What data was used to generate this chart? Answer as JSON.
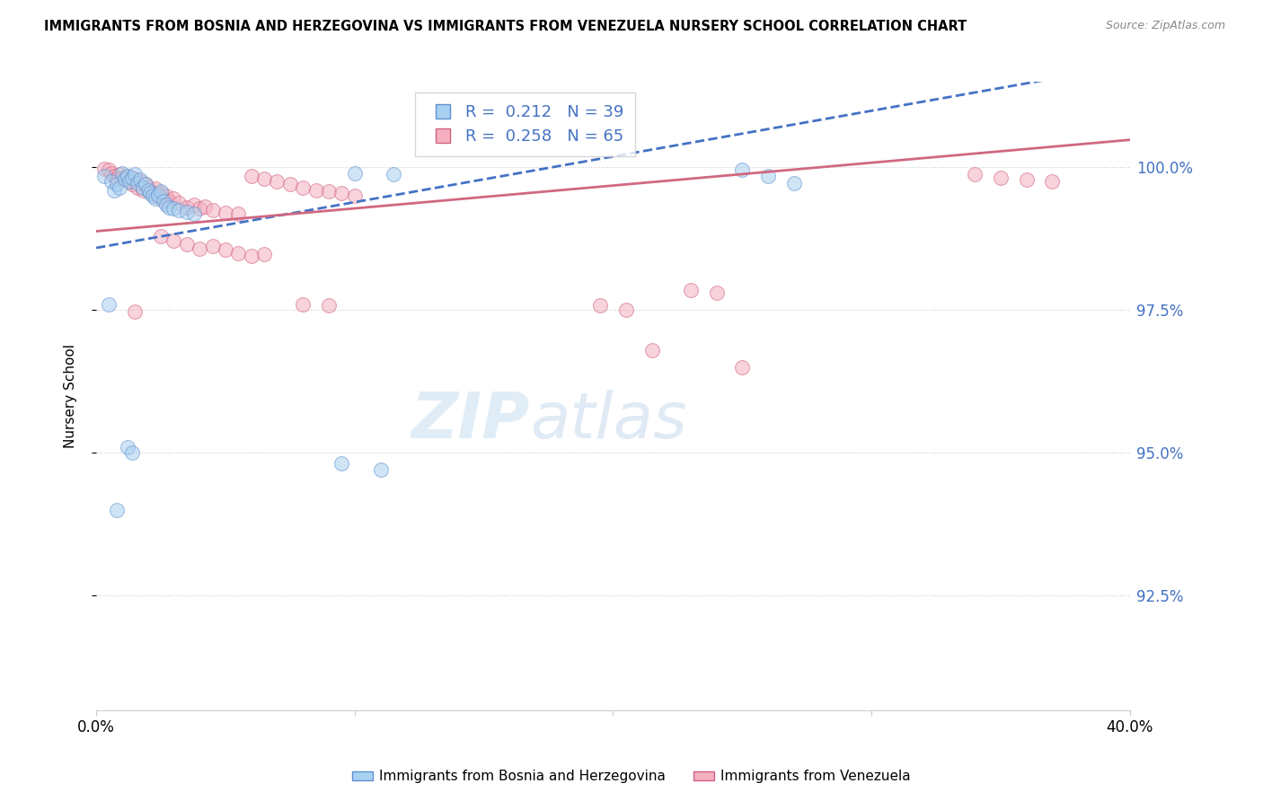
{
  "title": "IMMIGRANTS FROM BOSNIA AND HERZEGOVINA VS IMMIGRANTS FROM VENEZUELA NURSERY SCHOOL CORRELATION CHART",
  "source": "Source: ZipAtlas.com",
  "ylabel": "Nursery School",
  "ytick_labels": [
    "100.0%",
    "97.5%",
    "95.0%",
    "92.5%"
  ],
  "ytick_values": [
    1.0,
    0.975,
    0.95,
    0.925
  ],
  "xlim": [
    0.0,
    0.4
  ],
  "ylim": [
    0.905,
    1.015
  ],
  "legend_r_blue": "R = 0.212",
  "legend_n_blue": "N = 39",
  "legend_r_pink": "R = 0.258",
  "legend_n_pink": "N = 65",
  "blue_color": "#a8d0f0",
  "pink_color": "#f4b0c0",
  "blue_edge_color": "#6090d0",
  "pink_edge_color": "#d06080",
  "blue_line_color": "#4472c4",
  "pink_line_color": "#d06880",
  "watermark_zip": "ZIP",
  "watermark_atlas": "atlas",
  "blue_dots": [
    [
      0.003,
      0.9985
    ],
    [
      0.006,
      0.9975
    ],
    [
      0.007,
      0.996
    ],
    [
      0.008,
      0.997
    ],
    [
      0.009,
      0.9965
    ],
    [
      0.01,
      0.999
    ],
    [
      0.011,
      0.998
    ],
    [
      0.012,
      0.9985
    ],
    [
      0.013,
      0.9975
    ],
    [
      0.014,
      0.9982
    ],
    [
      0.015,
      0.9988
    ],
    [
      0.016,
      0.9972
    ],
    [
      0.017,
      0.9978
    ],
    [
      0.018,
      0.9965
    ],
    [
      0.019,
      0.997
    ],
    [
      0.02,
      0.996
    ],
    [
      0.021,
      0.9955
    ],
    [
      0.022,
      0.995
    ],
    [
      0.023,
      0.9945
    ],
    [
      0.024,
      0.9952
    ],
    [
      0.025,
      0.9958
    ],
    [
      0.026,
      0.994
    ],
    [
      0.027,
      0.9935
    ],
    [
      0.028,
      0.993
    ],
    [
      0.03,
      0.9928
    ],
    [
      0.032,
      0.9925
    ],
    [
      0.035,
      0.9922
    ],
    [
      0.038,
      0.9918
    ],
    [
      0.005,
      0.976
    ],
    [
      0.012,
      0.951
    ],
    [
      0.014,
      0.95
    ],
    [
      0.1,
      0.999
    ],
    [
      0.115,
      0.9988
    ],
    [
      0.095,
      0.9482
    ],
    [
      0.11,
      0.947
    ],
    [
      0.008,
      0.94
    ],
    [
      0.25,
      0.9995
    ],
    [
      0.26,
      0.9985
    ],
    [
      0.27,
      0.9972
    ]
  ],
  "pink_dots": [
    [
      0.003,
      0.9998
    ],
    [
      0.005,
      0.9995
    ],
    [
      0.006,
      0.999
    ],
    [
      0.007,
      0.9985
    ],
    [
      0.008,
      0.998
    ],
    [
      0.009,
      0.9988
    ],
    [
      0.01,
      0.9982
    ],
    [
      0.011,
      0.9978
    ],
    [
      0.012,
      0.9985
    ],
    [
      0.013,
      0.9975
    ],
    [
      0.014,
      0.997
    ],
    [
      0.015,
      0.998
    ],
    [
      0.016,
      0.9965
    ],
    [
      0.017,
      0.9975
    ],
    [
      0.018,
      0.996
    ],
    [
      0.019,
      0.997
    ],
    [
      0.02,
      0.9965
    ],
    [
      0.021,
      0.9958
    ],
    [
      0.022,
      0.9955
    ],
    [
      0.023,
      0.9962
    ],
    [
      0.024,
      0.9948
    ],
    [
      0.025,
      0.9955
    ],
    [
      0.026,
      0.9945
    ],
    [
      0.027,
      0.995
    ],
    [
      0.028,
      0.994
    ],
    [
      0.03,
      0.9945
    ],
    [
      0.032,
      0.9938
    ],
    [
      0.035,
      0.993
    ],
    [
      0.038,
      0.9935
    ],
    [
      0.04,
      0.9928
    ],
    [
      0.042,
      0.9932
    ],
    [
      0.045,
      0.9925
    ],
    [
      0.05,
      0.992
    ],
    [
      0.055,
      0.9918
    ],
    [
      0.06,
      0.9985
    ],
    [
      0.065,
      0.998
    ],
    [
      0.07,
      0.9975
    ],
    [
      0.075,
      0.997
    ],
    [
      0.08,
      0.9965
    ],
    [
      0.085,
      0.996
    ],
    [
      0.09,
      0.9958
    ],
    [
      0.095,
      0.9955
    ],
    [
      0.1,
      0.995
    ],
    [
      0.025,
      0.988
    ],
    [
      0.03,
      0.9872
    ],
    [
      0.035,
      0.9865
    ],
    [
      0.04,
      0.9858
    ],
    [
      0.045,
      0.9862
    ],
    [
      0.05,
      0.9855
    ],
    [
      0.055,
      0.985
    ],
    [
      0.06,
      0.9845
    ],
    [
      0.065,
      0.9848
    ],
    [
      0.08,
      0.976
    ],
    [
      0.09,
      0.9758
    ],
    [
      0.015,
      0.9748
    ],
    [
      0.195,
      0.9758
    ],
    [
      0.205,
      0.975
    ],
    [
      0.34,
      0.9988
    ],
    [
      0.35,
      0.9982
    ],
    [
      0.36,
      0.9978
    ],
    [
      0.37,
      0.9975
    ],
    [
      0.215,
      0.968
    ],
    [
      0.25,
      0.965
    ],
    [
      0.24,
      0.978
    ],
    [
      0.23,
      0.9785
    ]
  ]
}
